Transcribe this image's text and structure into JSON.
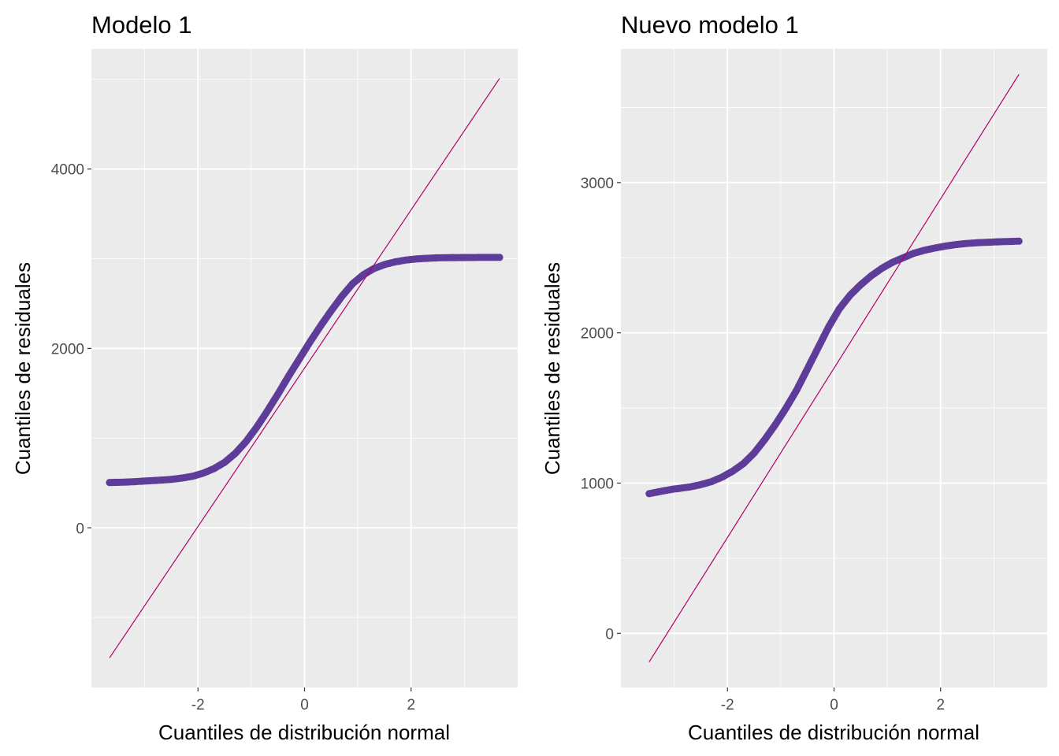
{
  "chart_data": [
    {
      "type": "scatter",
      "title": "Modelo 1",
      "xlabel": "Cuantiles de distribución normal",
      "ylabel": "Cuantiles de residuales",
      "xlim": [
        -4.0,
        4.0
      ],
      "ylim": [
        -1780,
        5340
      ],
      "x_ticks": [
        -2,
        0,
        2
      ],
      "x_tick_labels": [
        "-2",
        "0",
        "2"
      ],
      "y_ticks": [
        0,
        2000,
        4000
      ],
      "y_tick_labels": [
        "0",
        "2000",
        "4000"
      ],
      "grid": true,
      "point_color": "#5E3C99",
      "line_color": "#B0006B",
      "reference_line": {
        "x": [
          -3.66,
          3.66
        ],
        "y": [
          -1450,
          5010
        ]
      },
      "points": {
        "x": [
          -3.66,
          -3.35,
          -3.18,
          -3.05,
          -2.9,
          -2.7,
          -2.5,
          -2.3,
          -2.1,
          -1.9,
          -1.7,
          -1.5,
          -1.3,
          -1.1,
          -0.9,
          -0.7,
          -0.5,
          -0.3,
          -0.1,
          0.1,
          0.3,
          0.5,
          0.7,
          0.9,
          1.1,
          1.3,
          1.5,
          1.7,
          1.9,
          2.1,
          2.3,
          2.5,
          2.7,
          2.9,
          3.05,
          3.18,
          3.35,
          3.66
        ],
        "y": [
          505,
          510,
          515,
          520,
          525,
          532,
          540,
          555,
          575,
          610,
          660,
          730,
          830,
          960,
          1120,
          1300,
          1490,
          1690,
          1880,
          2070,
          2250,
          2420,
          2580,
          2720,
          2820,
          2890,
          2935,
          2965,
          2985,
          2998,
          3005,
          3010,
          3012,
          3013,
          3014,
          3014,
          3015,
          3015
        ]
      }
    },
    {
      "type": "scatter",
      "title": "Nuevo modelo 1",
      "xlabel": "Cuantiles de distribución normal",
      "ylabel": "Cuantiles de residuales",
      "xlim": [
        -4.0,
        4.0
      ],
      "ylim": [
        -360,
        3890
      ],
      "x_ticks": [
        -2,
        0,
        2
      ],
      "x_tick_labels": [
        "-2",
        "0",
        "2"
      ],
      "y_ticks": [
        0,
        1000,
        2000,
        3000
      ],
      "y_tick_labels": [
        "0",
        "1000",
        "2000",
        "3000"
      ],
      "grid": true,
      "point_color": "#5E3C99",
      "line_color": "#B0006B",
      "reference_line": {
        "x": [
          -3.47,
          3.47
        ],
        "y": [
          -190,
          3720
        ]
      },
      "points": {
        "x": [
          -3.47,
          -3.18,
          -3.02,
          -2.9,
          -2.7,
          -2.5,
          -2.3,
          -2.1,
          -1.9,
          -1.7,
          -1.5,
          -1.3,
          -1.1,
          -0.9,
          -0.7,
          -0.5,
          -0.3,
          -0.1,
          0.1,
          0.3,
          0.5,
          0.7,
          0.9,
          1.1,
          1.3,
          1.5,
          1.7,
          1.9,
          2.1,
          2.3,
          2.5,
          2.7,
          2.9,
          3.02,
          3.18,
          3.47
        ],
        "y": [
          930,
          950,
          960,
          965,
          975,
          990,
          1010,
          1040,
          1080,
          1130,
          1200,
          1290,
          1390,
          1500,
          1620,
          1760,
          1900,
          2040,
          2160,
          2250,
          2320,
          2380,
          2430,
          2470,
          2500,
          2530,
          2550,
          2565,
          2578,
          2588,
          2595,
          2600,
          2603,
          2605,
          2607,
          2610
        ]
      }
    }
  ]
}
